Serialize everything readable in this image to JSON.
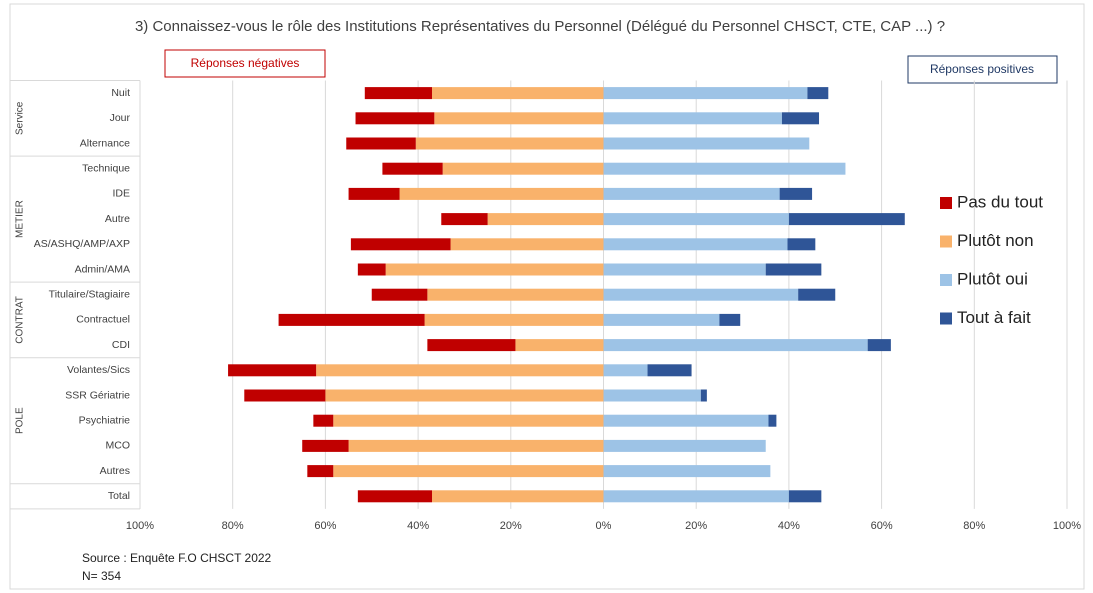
{
  "chart_data": {
    "type": "diverging-bar",
    "title": "3) Connaissez-vous  le rôle des Institutions Représentatives du Personnel (Délégué du Personnel CHSCT, CTE, CAP ...) ?",
    "negative_label": "Réponses négatives",
    "positive_label": "Réponses positives",
    "source": "Source : Enquête F.O CHSCT 2022",
    "sample": "N= 354",
    "categories": [
      "Nuit",
      "Jour",
      "Alternance",
      "Technique",
      "IDE",
      "Autre",
      "AS/ASHQ/AMP/AXP",
      "Admin/AMA",
      "Titulaire/Stagiaire",
      "Contractuel",
      "CDI",
      "Volantes/Sics",
      "SSR Gériatrie",
      "Psychiatrie",
      "MCO",
      "Autres",
      "Total"
    ],
    "groups": [
      {
        "name": "Service",
        "size": 3
      },
      {
        "name": "METIER",
        "size": 5
      },
      {
        "name": "CONTRAT",
        "size": 3
      },
      {
        "name": "POLE",
        "size": 5
      }
    ],
    "series": [
      {
        "name": "Pas du tout",
        "color": "#c00000",
        "values": [
          -14.5,
          -17,
          -15,
          -13,
          -11,
          -10,
          -21.5,
          -6,
          -12,
          -31.5,
          -19,
          -19,
          -17.5,
          -4.3,
          -10,
          -5.6,
          -16
        ]
      },
      {
        "name": "Plutôt non",
        "color": "#f9b26b",
        "values": [
          -37,
          -36.5,
          -40.5,
          -34.7,
          -44,
          -25,
          -33,
          -47,
          -38,
          -38.6,
          -19,
          -62,
          -60,
          -58.3,
          -55,
          -58.3,
          -37
        ]
      },
      {
        "name": "Plutôt oui",
        "color": "#9dc3e6",
        "values": [
          44,
          38.5,
          44.4,
          52.2,
          38,
          40,
          39.7,
          35,
          42,
          25,
          57,
          9.5,
          21,
          35.6,
          35,
          36,
          40
        ]
      },
      {
        "name": "Tout à fait",
        "color": "#2f5597",
        "values": [
          4.5,
          8,
          0,
          0,
          7,
          25,
          6,
          12,
          8,
          4.5,
          5,
          9.5,
          1.3,
          1.7,
          0,
          0,
          7
        ]
      }
    ],
    "xlim": [
      -100,
      100
    ],
    "xticks": [
      {
        "value": -100,
        "label": "100%"
      },
      {
        "value": -80,
        "label": "80%"
      },
      {
        "value": -60,
        "label": "60%"
      },
      {
        "value": -40,
        "label": "40%"
      },
      {
        "value": -20,
        "label": "20%"
      },
      {
        "value": 0,
        "label": "0%"
      },
      {
        "value": 20,
        "label": "20%"
      },
      {
        "value": 40,
        "label": "40%"
      },
      {
        "value": 60,
        "label": "60%"
      },
      {
        "value": 80,
        "label": "80%"
      },
      {
        "value": 100,
        "label": "100%"
      }
    ],
    "grid": true,
    "legend": "right"
  }
}
